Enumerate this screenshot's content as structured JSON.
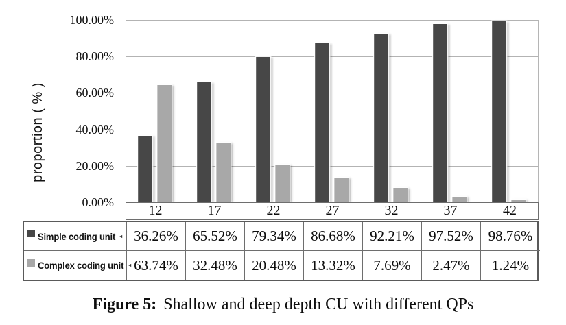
{
  "figure": {
    "caption_label": "Figure 5:",
    "caption_text": "Shallow and deep depth CU with different QPs"
  },
  "chart_data": {
    "type": "bar",
    "ylabel": "proportion ( % )",
    "ylim": [
      0,
      100
    ],
    "ytick_labels": [
      "100.00%",
      "80.00%",
      "60.00%",
      "40.00%",
      "20.00%",
      "0.00%"
    ],
    "ytick_values": [
      100,
      80,
      60,
      40,
      20,
      0
    ],
    "grid": true,
    "legend_position": "table-left",
    "categories": [
      "12",
      "17",
      "22",
      "27",
      "32",
      "37",
      "42"
    ],
    "series": [
      {
        "name": "Simple coding unit",
        "trailing_mark": "◄",
        "color": "#474747",
        "edge_highlight": "#6d6d6d",
        "values": [
          36.26,
          65.52,
          79.34,
          86.68,
          92.21,
          97.52,
          98.76
        ],
        "value_labels": [
          "36.26%",
          "65.52%",
          "79.34%",
          "86.68%",
          "92.21%",
          "97.52%",
          "98.76%"
        ]
      },
      {
        "name": "Complex coding unit",
        "trailing_mark": "◄",
        "color": "#a8a8a8",
        "edge_highlight": "#c9c9c9",
        "values": [
          63.74,
          32.48,
          20.48,
          13.32,
          7.69,
          2.47,
          1.24
        ],
        "value_labels": [
          "63.74%",
          "32.48%",
          "20.48%",
          "13.32%",
          "7.69%",
          "2.47%",
          "1.24%"
        ]
      }
    ]
  }
}
